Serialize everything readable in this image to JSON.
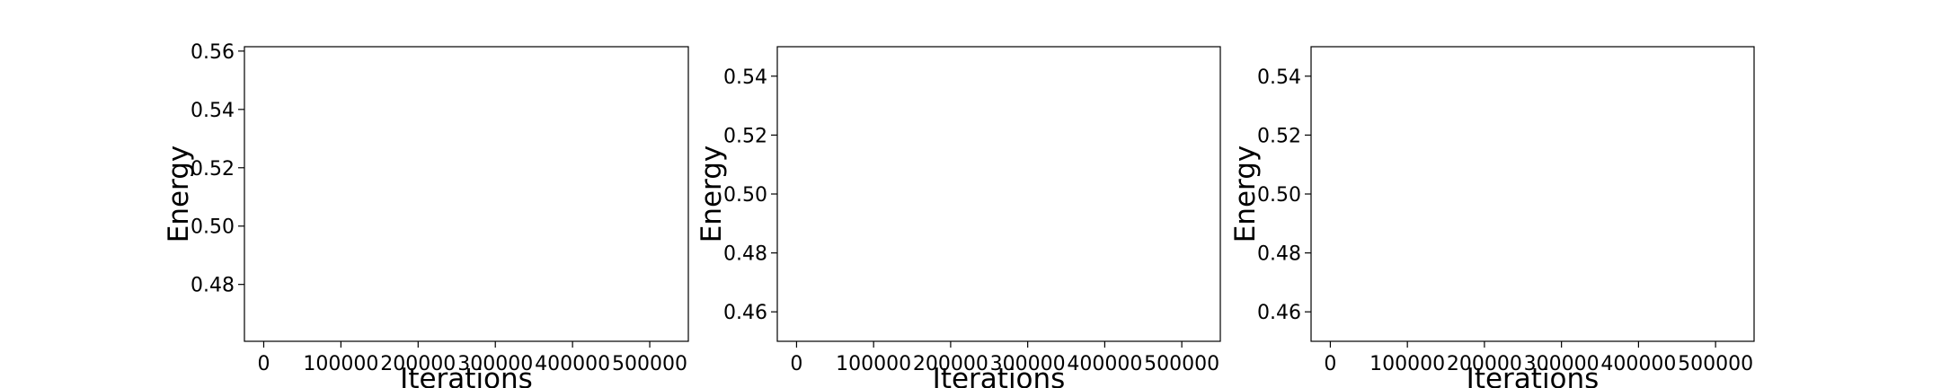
{
  "chart_data": [
    {
      "type": "line",
      "title": "",
      "xlabel": "Iterations",
      "ylabel": "Energy",
      "xlim": [
        -25000,
        550000
      ],
      "ylim": [
        0.4605,
        0.5615
      ],
      "x_ticks": [
        0,
        100000,
        200000,
        300000,
        400000,
        500000
      ],
      "x_tick_labels": [
        "0",
        "100000",
        "200000",
        "300000",
        "400000",
        "500000"
      ],
      "y_ticks": [
        0.48,
        0.5,
        0.52,
        0.54,
        0.56
      ],
      "y_tick_labels": [
        "0.48",
        "0.50",
        "0.52",
        "0.54",
        "0.56"
      ],
      "grid": false,
      "series": []
    },
    {
      "type": "line",
      "title": "",
      "xlabel": "Iterations",
      "ylabel": "Energy",
      "xlim": [
        -25000,
        550000
      ],
      "ylim": [
        0.45,
        0.55
      ],
      "x_ticks": [
        0,
        100000,
        200000,
        300000,
        400000,
        500000
      ],
      "x_tick_labels": [
        "0",
        "100000",
        "200000",
        "300000",
        "400000",
        "500000"
      ],
      "y_ticks": [
        0.46,
        0.48,
        0.5,
        0.52,
        0.54
      ],
      "y_tick_labels": [
        "0.46",
        "0.48",
        "0.50",
        "0.52",
        "0.54"
      ],
      "grid": false,
      "series": []
    },
    {
      "type": "line",
      "title": "",
      "xlabel": "Iterations",
      "ylabel": "Energy",
      "xlim": [
        -25000,
        550000
      ],
      "ylim": [
        0.45,
        0.55
      ],
      "x_ticks": [
        0,
        100000,
        200000,
        300000,
        400000,
        500000
      ],
      "x_tick_labels": [
        "0",
        "100000",
        "200000",
        "300000",
        "400000",
        "500000"
      ],
      "y_ticks": [
        0.46,
        0.48,
        0.5,
        0.52,
        0.54
      ],
      "y_tick_labels": [
        "0.46",
        "0.48",
        "0.50",
        "0.52",
        "0.54"
      ],
      "grid": false,
      "series": []
    }
  ]
}
